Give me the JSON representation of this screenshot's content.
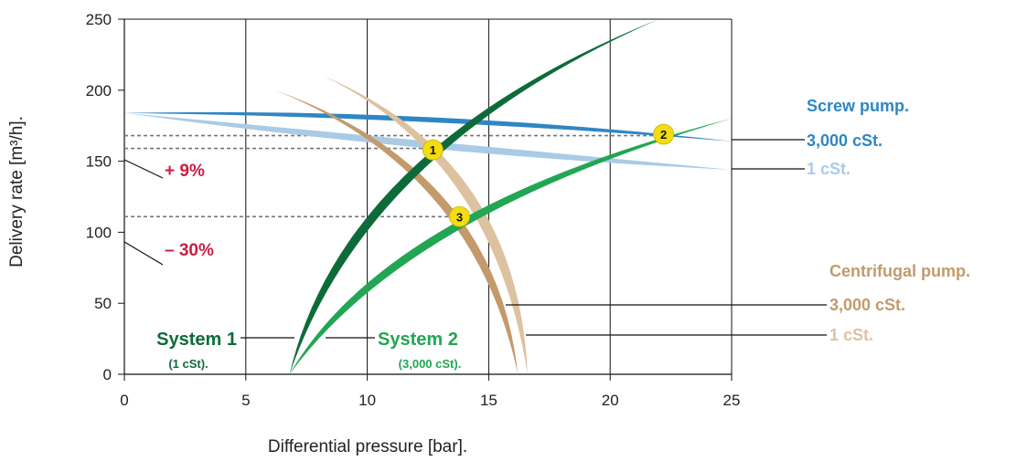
{
  "colors": {
    "screw_3000": "#2f86c4",
    "screw_1": "#a9cbe6",
    "cent_3000": "#c39a6b",
    "cent_1": "#dcc2a1",
    "system1": "#0d6b3a",
    "system2": "#22a654",
    "percent": "#cc1c45",
    "marker": "#f3dc0f",
    "dashed": "#777777"
  },
  "chart_data": {
    "type": "line",
    "xlabel": "Differential pressure [bar].",
    "ylabel": "Delivery rate [m³/h].",
    "xlim": [
      0,
      25
    ],
    "ylim": [
      0,
      250
    ],
    "x_ticks": [
      "0",
      "5",
      "10",
      "15",
      "20",
      "25"
    ],
    "y_ticks": [
      "0",
      "50",
      "100",
      "150",
      "200",
      "250"
    ],
    "grid": "vertical lines",
    "series": [
      {
        "id": "screw_1",
        "name": "1 cSt.",
        "group": "Screw pump.",
        "x": [
          0,
          12.6,
          25
        ],
        "y": [
          184,
          160,
          144
        ]
      },
      {
        "id": "screw_3000",
        "name": "3,000 cSt.",
        "group": "Screw pump.",
        "x": [
          0,
          12.6,
          25
        ],
        "y": [
          184,
          181,
          164
        ]
      },
      {
        "id": "cent_3000",
        "name": "3,000 cSt.",
        "group": "Centrifugal pump.",
        "x": [
          6.2,
          12.6,
          13.8,
          16.2
        ],
        "y": [
          200,
          160,
          112,
          0
        ]
      },
      {
        "id": "cent_1",
        "name": "1 cSt.",
        "group": "Centrifugal pump.",
        "x": [
          8.2,
          12.6,
          15.4,
          16.6
        ],
        "y": [
          210,
          175,
          90,
          0
        ]
      },
      {
        "id": "system1",
        "name": "System 1",
        "sub": "(1 cSt).",
        "x": [
          6.8,
          12.6,
          22
        ],
        "y": [
          0,
          160,
          250
        ]
      },
      {
        "id": "system2",
        "name": "System 2",
        "sub": "(3,000 cSt).",
        "x": [
          6.8,
          13.8,
          22.2,
          25
        ],
        "y": [
          0,
          112,
          168,
          180
        ]
      }
    ],
    "operating_points": [
      {
        "label": "1",
        "x": 12.7,
        "y": 158
      },
      {
        "label": "2",
        "x": 22.2,
        "y": 169
      },
      {
        "label": "3",
        "x": 13.8,
        "y": 111
      }
    ],
    "reference_lines": [
      {
        "y": 168,
        "x_end": 22.2
      },
      {
        "y": 159,
        "x_end": 12.7
      },
      {
        "y": 111,
        "x_end": 13.8
      }
    ],
    "annotations": [
      "+ 9%",
      "– 30%"
    ],
    "legend": {
      "screw_title": "Screw pump.",
      "screw_3000": "3,000 cSt.",
      "screw_1": "1 cSt.",
      "cent_title": "Centrifugal pump.",
      "cent_3000": "3,000 cSt.",
      "cent_1": "1 cSt."
    }
  }
}
